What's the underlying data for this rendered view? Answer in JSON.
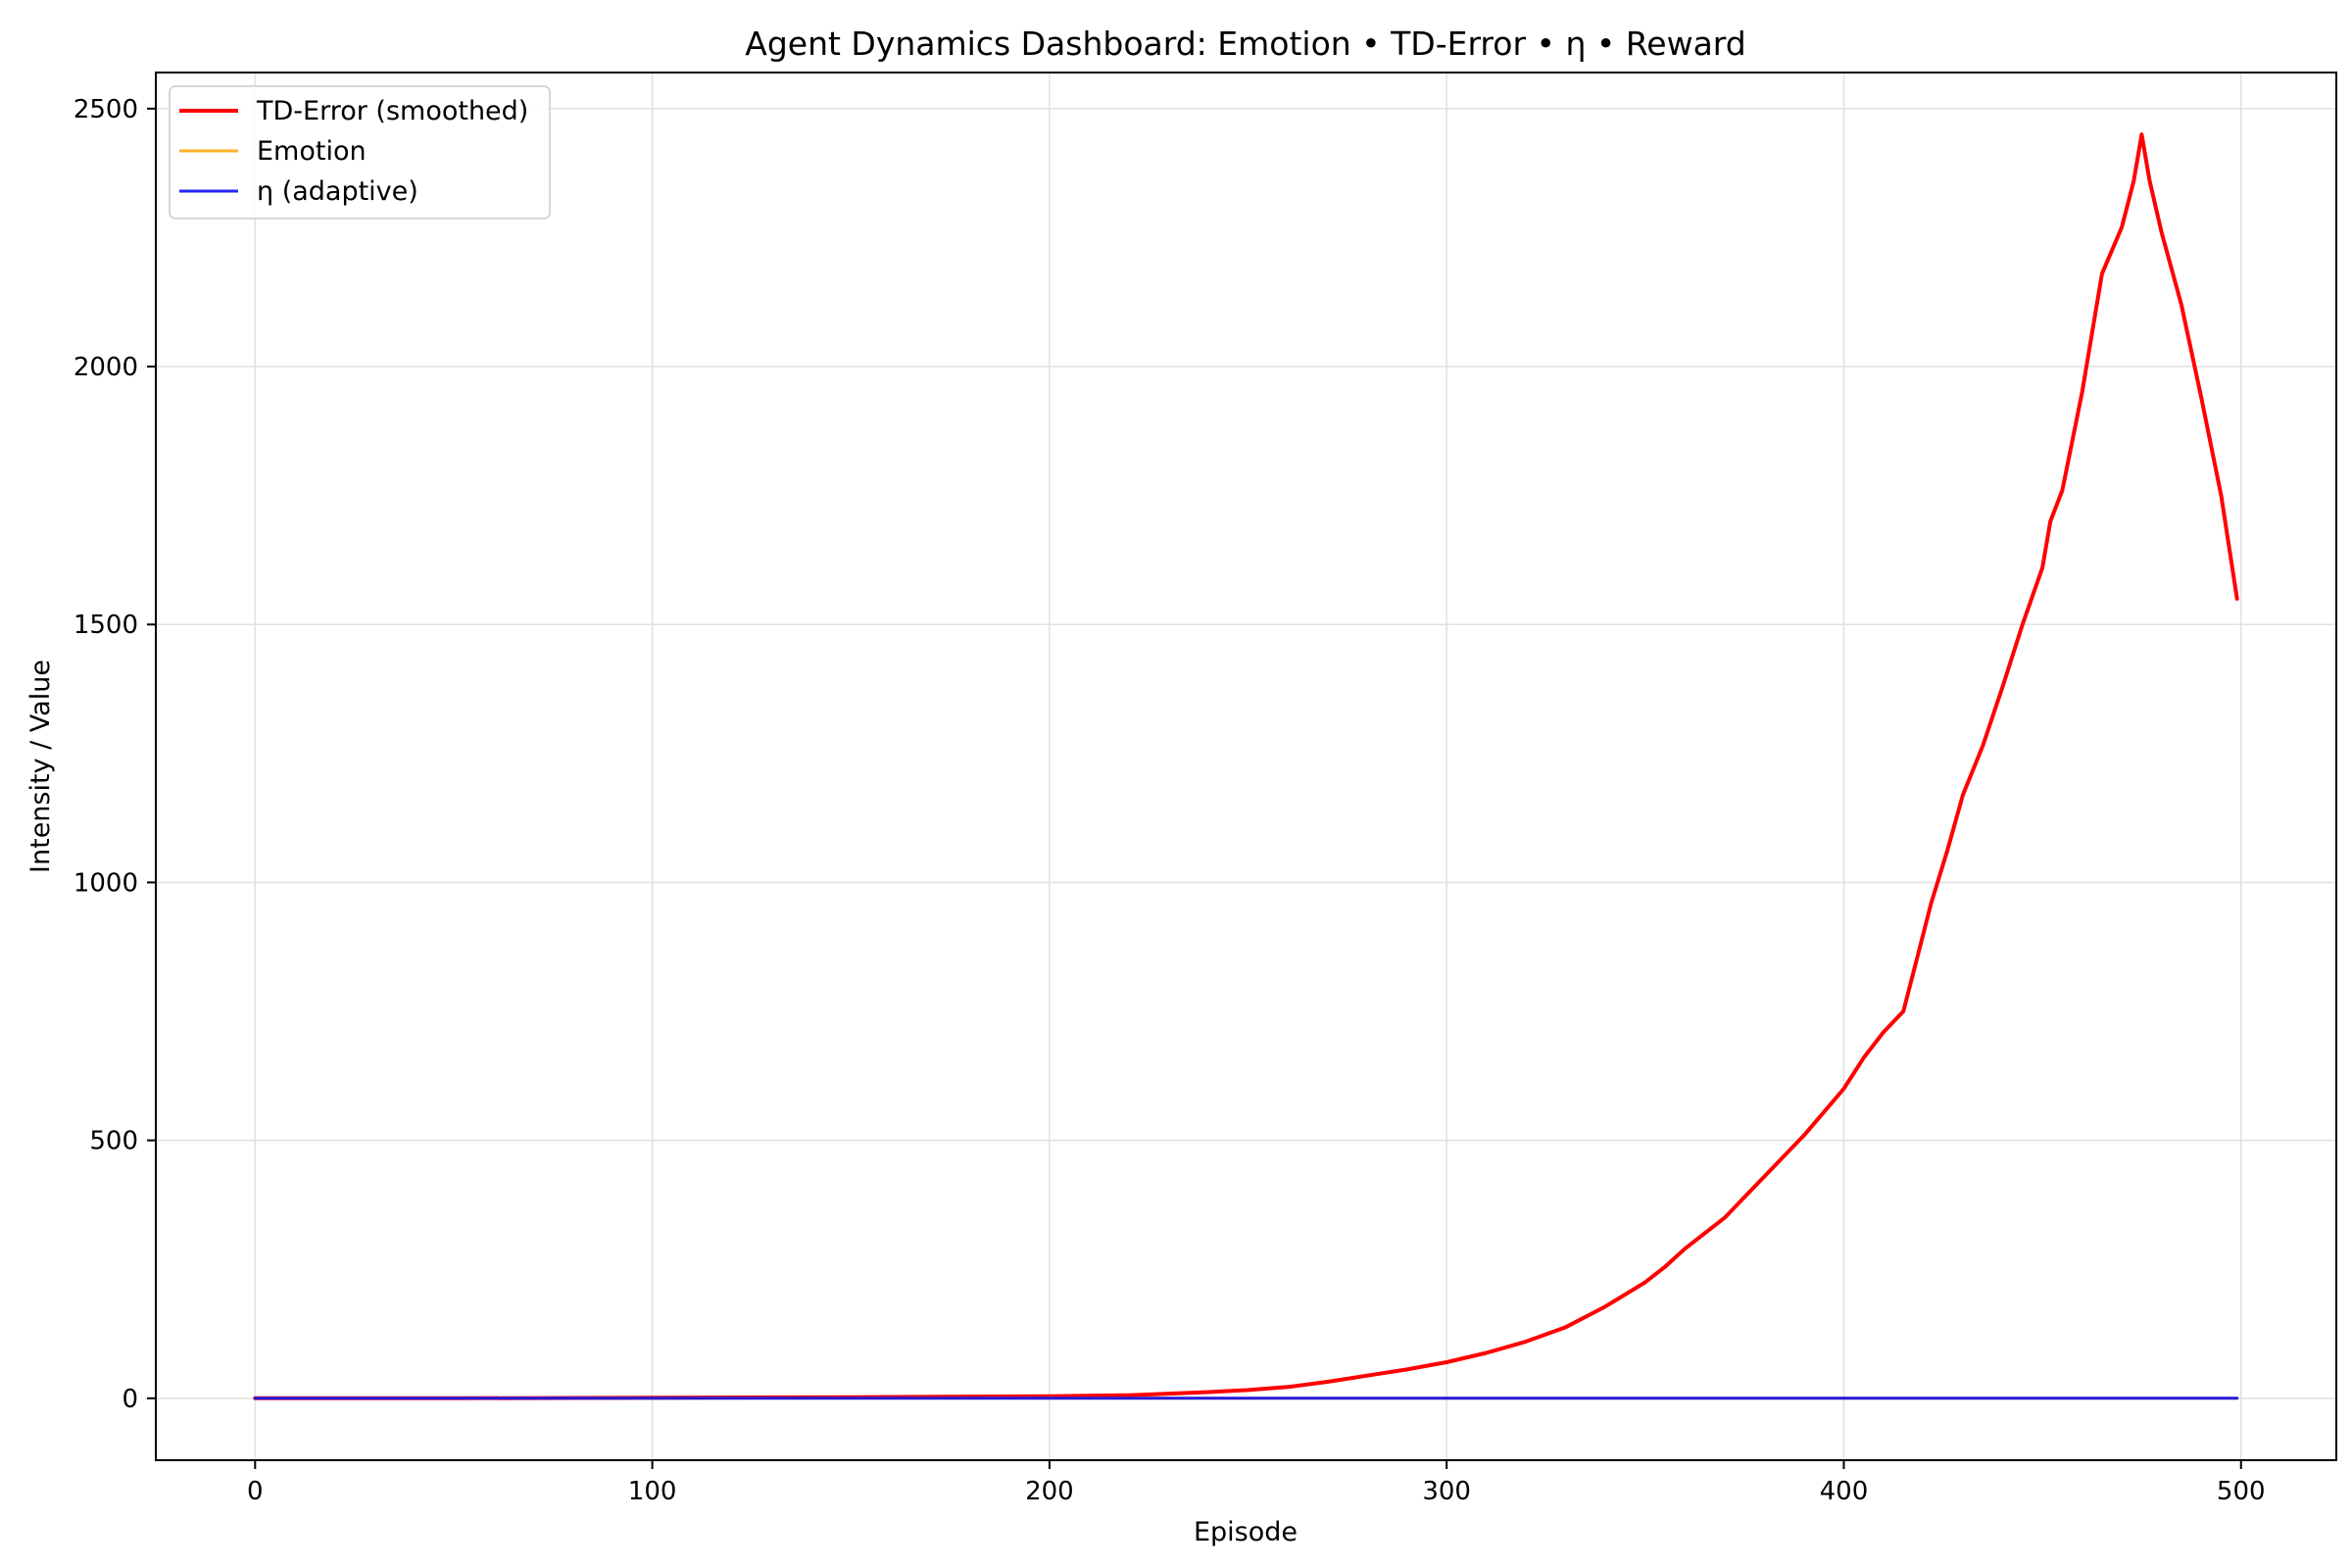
{
  "chart_data": {
    "type": "line",
    "title": "Agent Dynamics Dashboard: Emotion • TD-Error • η • Reward",
    "xlabel": "Episode",
    "ylabel": "Intensity / Value",
    "xlim": [
      -25,
      524
    ],
    "ylim": [
      -120,
      2570
    ],
    "xticks": [
      0,
      100,
      200,
      300,
      400,
      500
    ],
    "yticks": [
      0,
      500,
      1000,
      1500,
      2000,
      2500
    ],
    "grid": true,
    "legend_position": "top-left",
    "series": [
      {
        "name": "TD-Error (smoothed)",
        "color": "#ff0000",
        "x": [
          0,
          50,
          100,
          150,
          200,
          220,
          240,
          250,
          260,
          270,
          280,
          290,
          300,
          310,
          320,
          330,
          340,
          350,
          355,
          360,
          370,
          375,
          380,
          385,
          390,
          395,
          400,
          405,
          410,
          415,
          418,
          422,
          426,
          430,
          435,
          440,
          445,
          450,
          452,
          455,
          460,
          465,
          470,
          473,
          475,
          477,
          480,
          485,
          490,
          495,
          499
        ],
        "y": [
          0,
          0,
          1,
          2,
          4,
          6,
          12,
          16,
          22,
          32,
          44,
          56,
          70,
          88,
          110,
          138,
          178,
          225,
          255,
          290,
          350,
          390,
          430,
          470,
          510,
          555,
          600,
          660,
          710,
          750,
          840,
          960,
          1060,
          1170,
          1265,
          1380,
          1500,
          1610,
          1700,
          1760,
          1950,
          2180,
          2270,
          2360,
          2450,
          2360,
          2260,
          2120,
          1940,
          1750,
          1550
        ]
      },
      {
        "name": "Emotion",
        "color": "#ffa500",
        "x": [
          0,
          100,
          200,
          300,
          400,
          499
        ],
        "y": [
          0,
          0,
          0,
          0,
          0,
          0
        ]
      },
      {
        "name": "η (adaptive)",
        "color": "#0000ff",
        "x": [
          0,
          100,
          200,
          300,
          400,
          499
        ],
        "y": [
          0,
          0,
          0,
          0,
          0,
          0
        ]
      }
    ]
  }
}
